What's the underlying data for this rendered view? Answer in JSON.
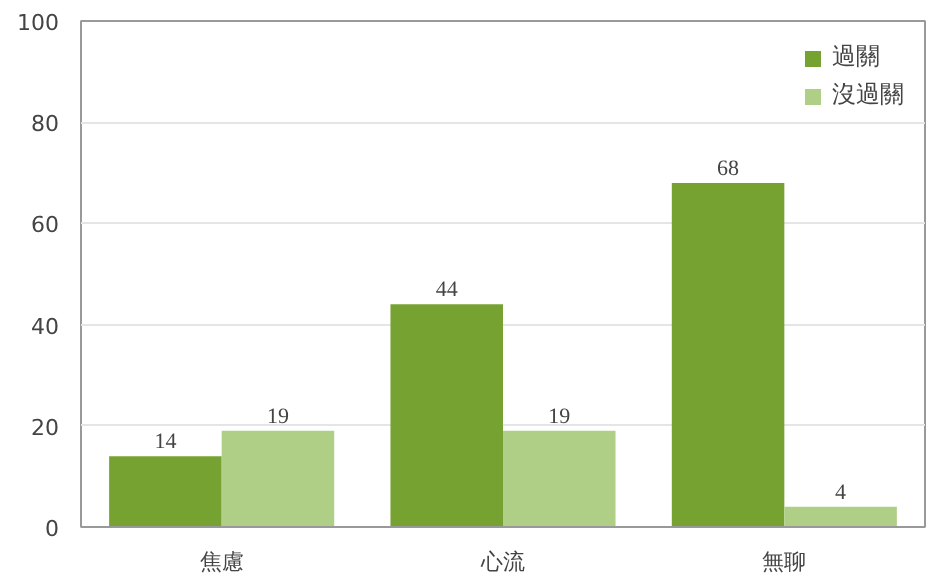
{
  "chart_data": {
    "type": "bar",
    "categories": [
      "焦慮",
      "心流",
      "無聊"
    ],
    "series": [
      {
        "name": "過關",
        "color": "#76a232",
        "values": [
          14,
          44,
          68
        ]
      },
      {
        "name": "沒過關",
        "color": "#b0cf86",
        "values": [
          19,
          19,
          4
        ]
      }
    ],
    "ylim": [
      0,
      100
    ],
    "yticks": [
      0,
      20,
      40,
      60,
      80,
      100
    ],
    "grid": "y",
    "legend": "top right",
    "data_labels": true
  }
}
